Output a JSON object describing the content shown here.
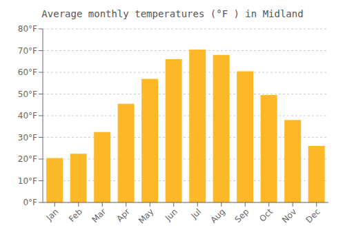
{
  "chart_data": {
    "type": "bar",
    "title": "Average monthly temperatures (°F ) in Midland",
    "categories": [
      "Jan",
      "Feb",
      "Mar",
      "Apr",
      "May",
      "Jun",
      "Jul",
      "Aug",
      "Sep",
      "Oct",
      "Nov",
      "Dec"
    ],
    "values": [
      20.5,
      22.5,
      32.5,
      45.5,
      57.0,
      66.0,
      70.5,
      68.0,
      60.5,
      49.5,
      38.0,
      26.0
    ],
    "color": "#FDB827",
    "ylim": [
      0,
      80
    ],
    "yticks": [
      {
        "value": 0,
        "label": "0°F"
      },
      {
        "value": 10,
        "label": "10°F"
      },
      {
        "value": 20,
        "label": "20°F"
      },
      {
        "value": 30,
        "label": "30°F"
      },
      {
        "value": 40,
        "label": "40°F"
      },
      {
        "value": 50,
        "label": "50°F"
      },
      {
        "value": 60,
        "label": "60°F"
      },
      {
        "value": 70,
        "label": "70°F"
      },
      {
        "value": 80,
        "label": "80°F"
      }
    ],
    "grid": true
  }
}
